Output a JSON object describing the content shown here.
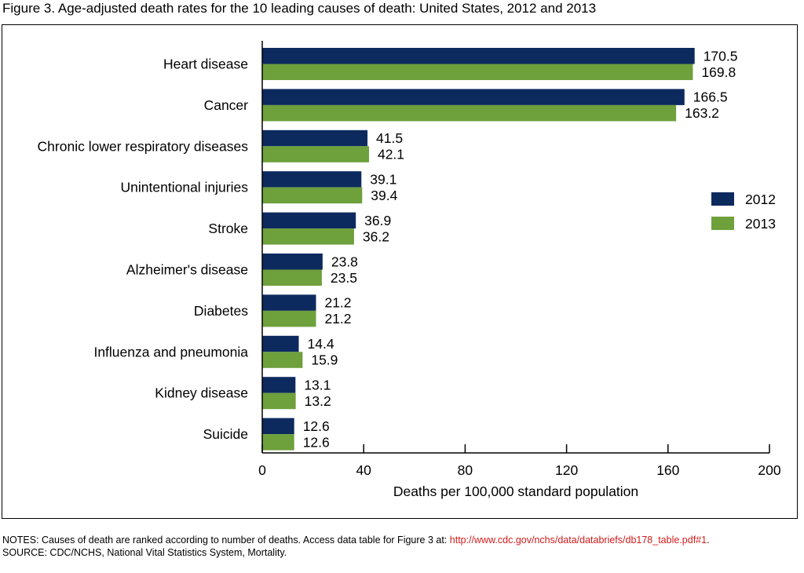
{
  "figure": {
    "title": "Figure 3. Age-adjusted death rates for the 10 leading causes of death: United States, 2012 and 2013"
  },
  "notes": {
    "prefix": "NOTES: Causes of death are ranked according to number of deaths. Access data table for Figure 3 at: ",
    "link": "http://www.cdc.gov/nchs/data/databriefs/db178_table.pdf#1",
    "suffix": ".",
    "source": "SOURCE: CDC/NCHS, National Vital Statistics System, Mortality."
  },
  "chart_data": {
    "type": "bar",
    "orientation": "horizontal",
    "title": "Figure 3. Age-adjusted death rates for the 10 leading causes of death: United States, 2012 and 2013",
    "xlabel": "Deaths per 100,000 standard population",
    "ylabel": "",
    "xlim": [
      0,
      200
    ],
    "x_ticks": [
      0,
      40,
      80,
      120,
      160,
      200
    ],
    "grid": false,
    "legend_position": "right",
    "categories": [
      "Heart disease",
      "Cancer",
      "Chronic lower respiratory diseases",
      "Unintentional injuries",
      "Stroke",
      "Alzheimer's disease",
      "Diabetes",
      "Influenza and pneumonia",
      "Kidney disease",
      "Suicide"
    ],
    "series": [
      {
        "name": "2012",
        "color": "#0d2a5e",
        "values": [
          170.5,
          166.5,
          41.5,
          39.1,
          36.9,
          23.8,
          21.2,
          14.4,
          13.1,
          12.6
        ]
      },
      {
        "name": "2013",
        "color": "#6ea03c",
        "values": [
          169.8,
          163.2,
          42.1,
          39.4,
          36.2,
          23.5,
          21.2,
          15.9,
          13.2,
          12.6
        ]
      }
    ]
  }
}
